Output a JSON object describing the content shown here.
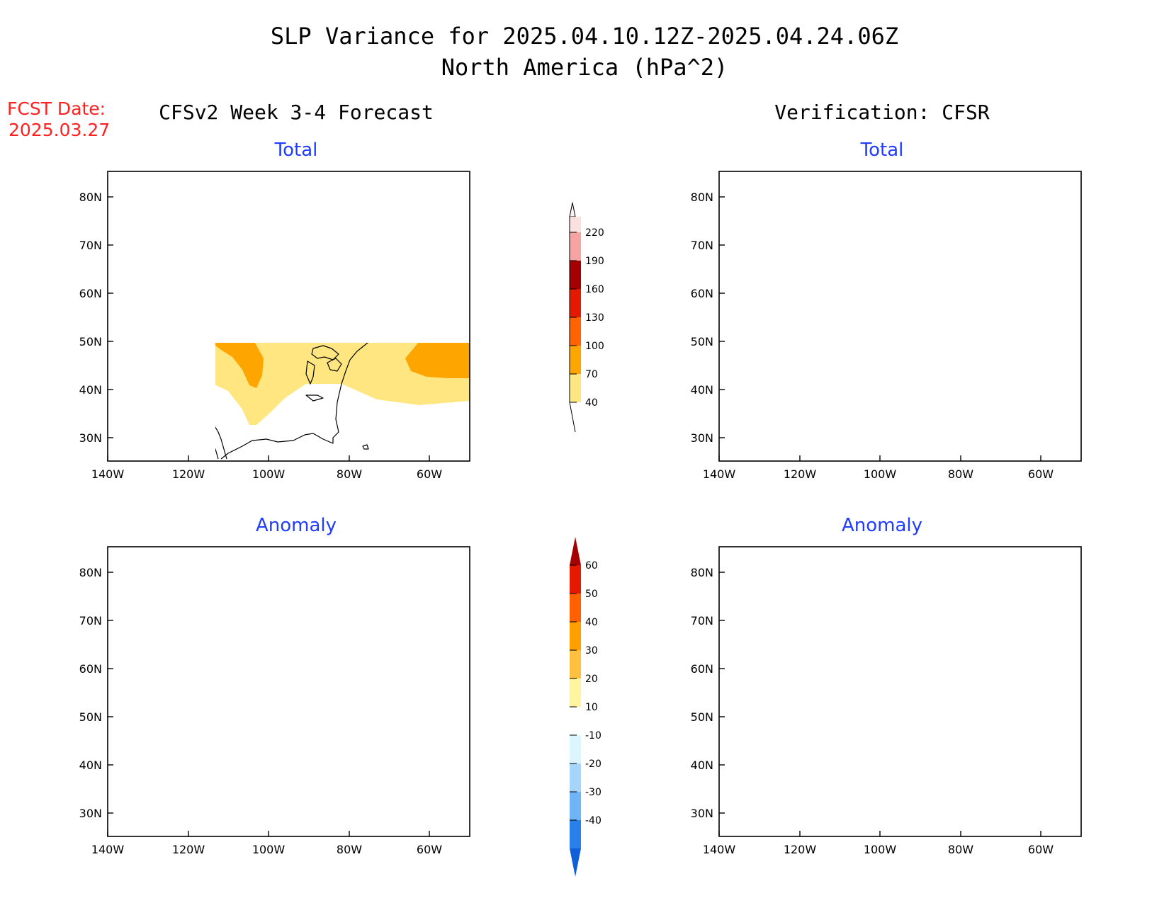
{
  "title": {
    "line1": "SLP Variance for 2025.04.10.12Z-2025.04.24.06Z",
    "line2": "North America (hPa^2)"
  },
  "fcst": {
    "line1": "FCST Date:",
    "line2": "2025.03.27"
  },
  "column_headers": {
    "left": "CFSv2 Week 3-4 Forecast",
    "right": "Verification: CFSR"
  },
  "panel_titles": {
    "fcst_total": "Total",
    "verif_total": "Total",
    "fcst_anom": "Anomaly",
    "verif_anom": "Anomaly"
  },
  "axes": {
    "lon_ticks": [
      "140W",
      "120W",
      "100W",
      "80W",
      "60W"
    ],
    "lat_ticks": [
      "80N",
      "70N",
      "60N",
      "50N",
      "40N",
      "30N"
    ]
  },
  "colorbars": {
    "total": {
      "labels": [
        "40",
        "70",
        "100",
        "130",
        "160",
        "190",
        "220"
      ],
      "colors": [
        "#ffe680",
        "#ffa500",
        "#ff6400",
        "#e41a00",
        "#a40000",
        "#f5a3a3",
        "#fbe0e0"
      ]
    },
    "anomaly": {
      "labels": [
        "-40",
        "-30",
        "-20",
        "-10",
        "10",
        "20",
        "30",
        "40",
        "50",
        "60"
      ],
      "colors": [
        "#0f5fd8",
        "#2a80eb",
        "#6fb5f5",
        "#a6d5fb",
        "#dcf6ff",
        "#ffffff",
        "#fff5a0",
        "#ffc040",
        "#ffa000",
        "#ff6000",
        "#e41a00",
        "#a40000"
      ]
    }
  }
}
